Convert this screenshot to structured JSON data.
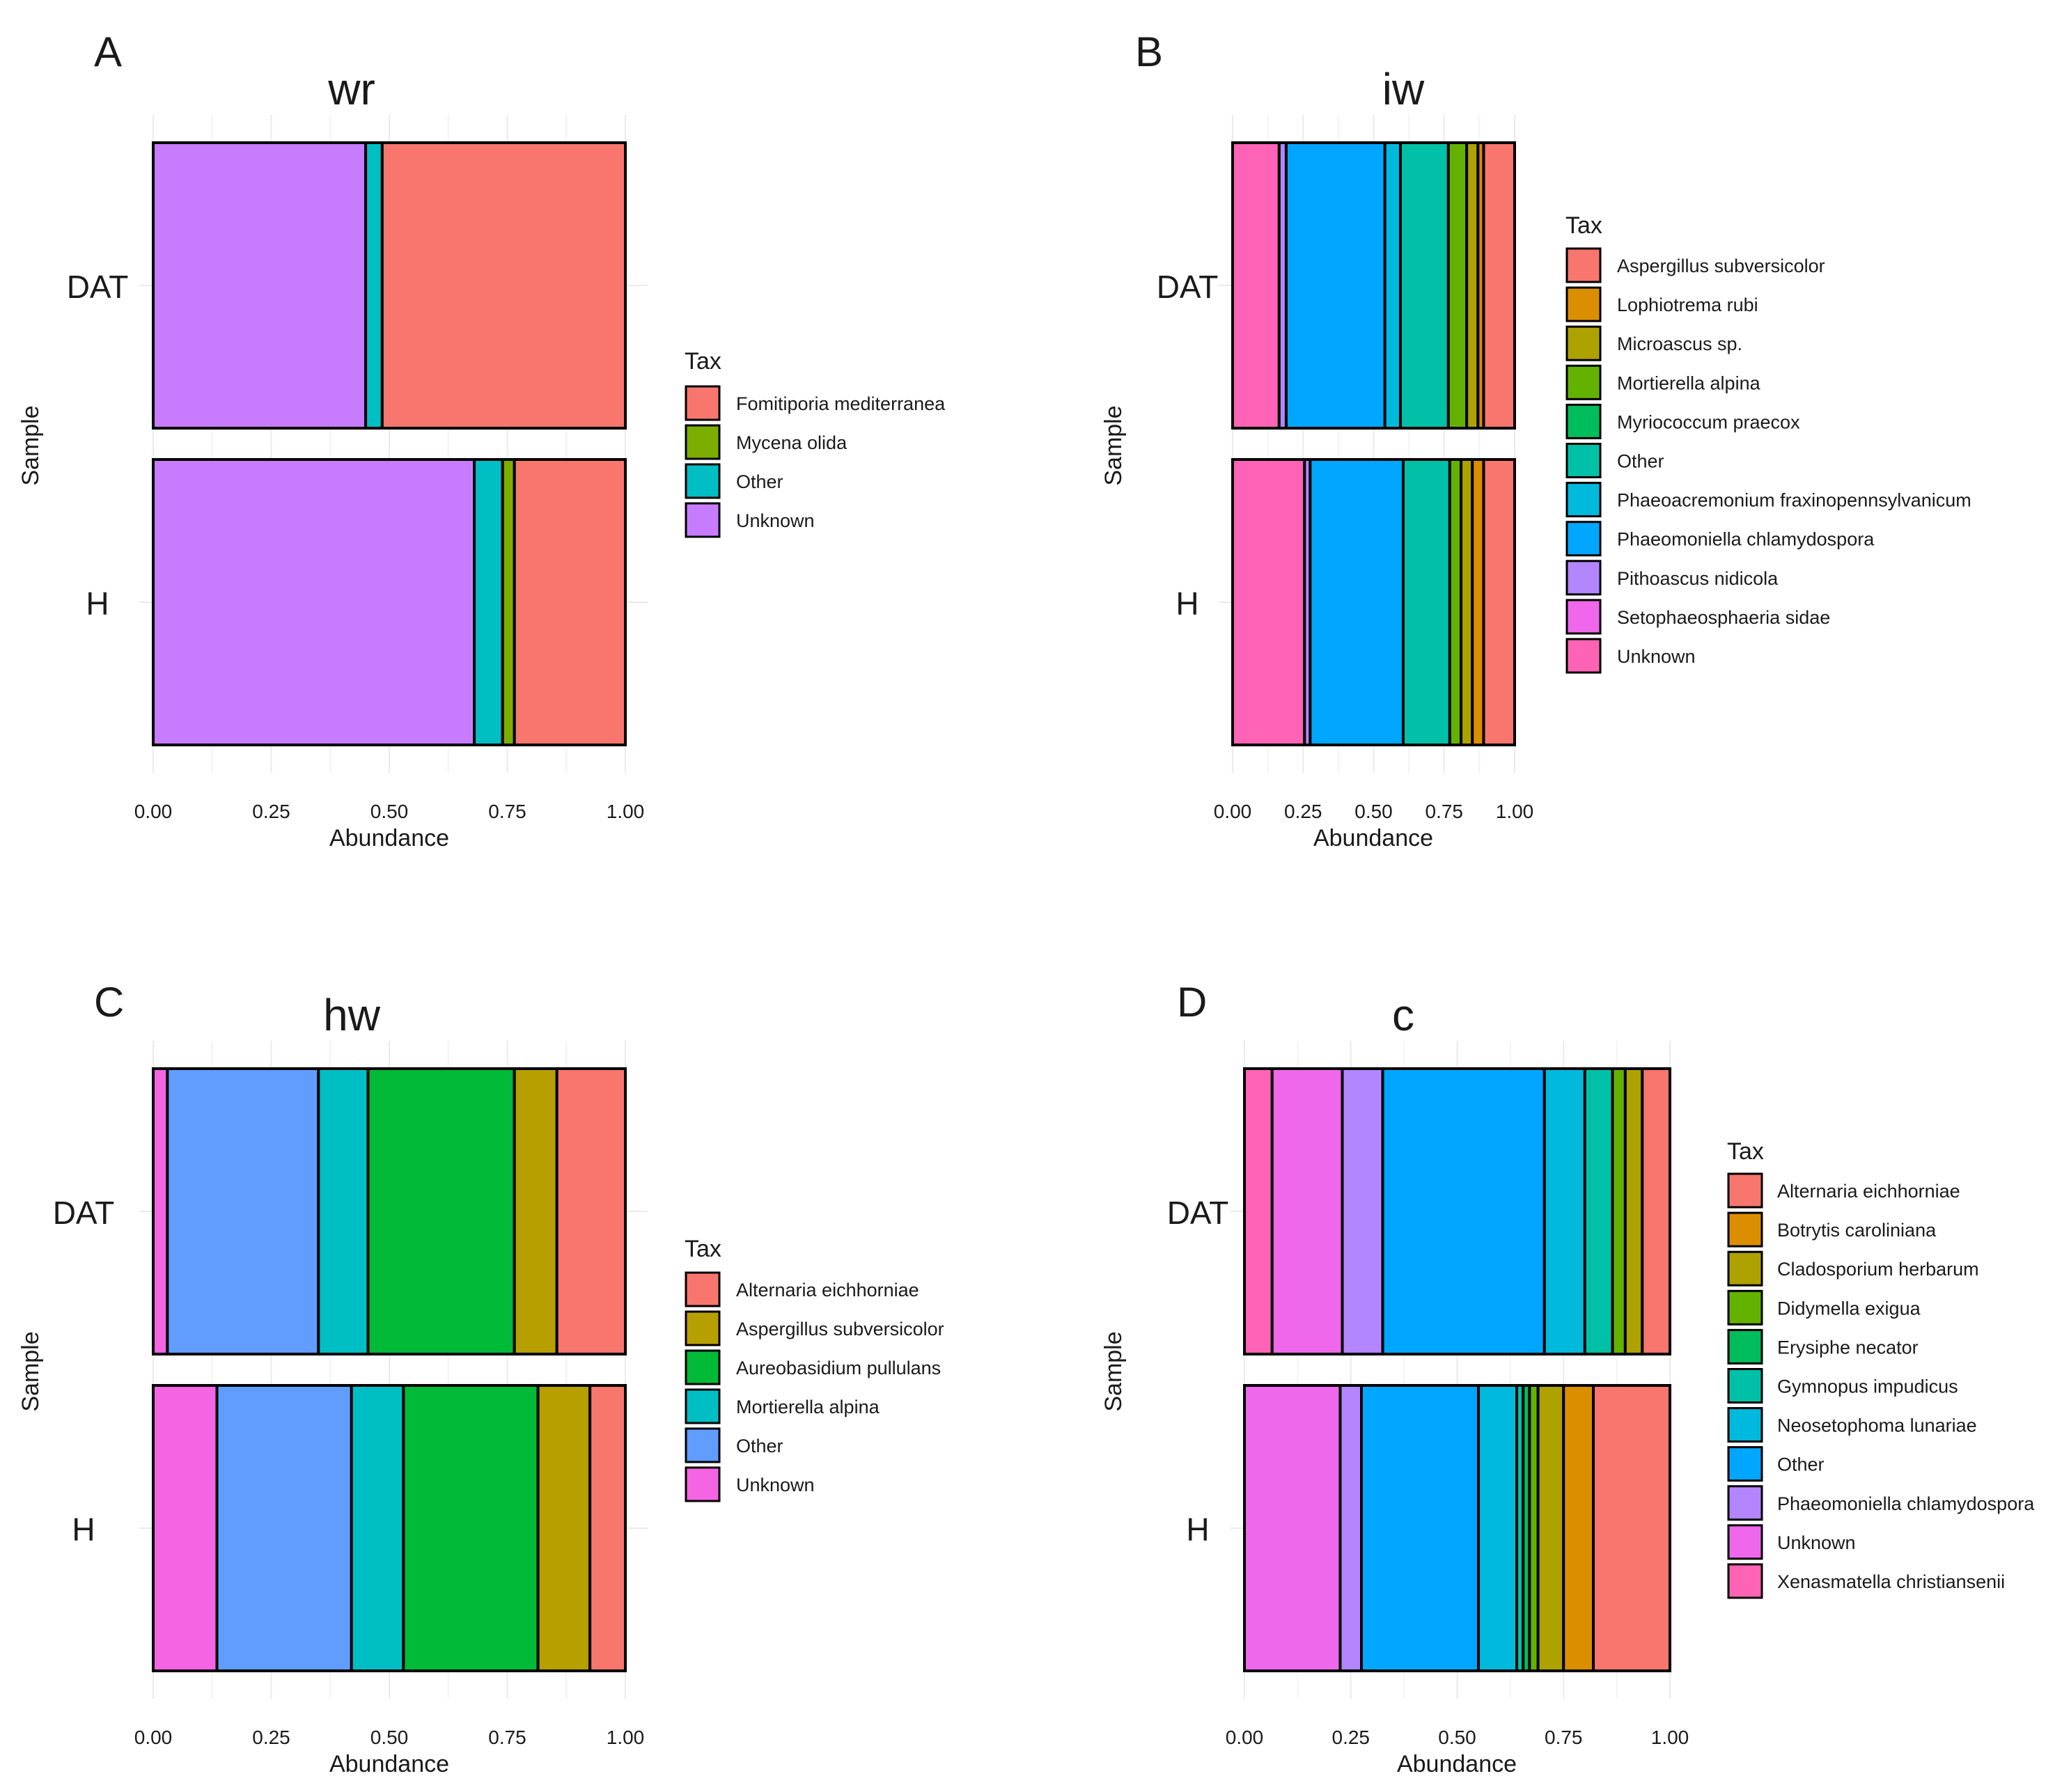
{
  "figure": {
    "panels": [
      {
        "letter": "A",
        "title": "wr"
      },
      {
        "letter": "B",
        "title": "iw"
      },
      {
        "letter": "C",
        "title": "hw"
      },
      {
        "letter": "D",
        "title": "c"
      }
    ]
  },
  "chart_data": [
    {
      "type": "bar",
      "orientation": "horizontal",
      "stacked": true,
      "panel": "A",
      "title": "wr",
      "xlabel": "Abundance",
      "ylabel": "Sample",
      "xlim": [
        0,
        1
      ],
      "xticks": [
        "0.00",
        "0.25",
        "0.50",
        "0.75",
        "1.00"
      ],
      "categories": [
        "DAT",
        "H"
      ],
      "legend_title": "Tax",
      "legend": [
        "Fomitiporia mediterranea",
        "Mycena olida",
        "Other",
        "Unknown"
      ],
      "colors": [
        "#F8766D",
        "#7CAE00",
        "#00BFC4",
        "#C77CFF"
      ],
      "series": [
        {
          "name": "Unknown",
          "values": [
            0.45,
            0.68
          ]
        },
        {
          "name": "Other",
          "values": [
            0.035,
            0.06
          ]
        },
        {
          "name": "Mycena olida",
          "values": [
            0.0,
            0.025
          ]
        },
        {
          "name": "Fomitiporia mediterranea",
          "values": [
            0.515,
            0.235
          ]
        }
      ]
    },
    {
      "type": "bar",
      "orientation": "horizontal",
      "stacked": true,
      "panel": "B",
      "title": "iw",
      "xlabel": "Abundance",
      "ylabel": "Sample",
      "xlim": [
        0,
        1
      ],
      "xticks": [
        "0.00",
        "0.25",
        "0.50",
        "0.75",
        "1.00"
      ],
      "categories": [
        "DAT",
        "H"
      ],
      "legend_title": "Tax",
      "legend": [
        "Aspergillus subversicolor",
        "Lophiotrema rubi",
        "Microascus sp.",
        "Mortierella alpina",
        "Myriococcum praecox",
        "Other",
        "Phaeoacremonium fraxinopennsylvanicum",
        "Phaeomoniella chlamydospora",
        "Pithoascus nidicola",
        "Setophaeosphaeria sidae",
        "Unknown"
      ],
      "colors": [
        "#F8766D",
        "#DB8E00",
        "#AEA200",
        "#64B200",
        "#00BD5C",
        "#00C1A7",
        "#00BADE",
        "#00A6FF",
        "#B385FF",
        "#EF67EB",
        "#FF63B6"
      ],
      "series": [
        {
          "name": "Unknown",
          "values": [
            0.165,
            0.255
          ]
        },
        {
          "name": "Setophaeosphaeria sidae",
          "values": [
            0.0,
            0.0
          ]
        },
        {
          "name": "Pithoascus nidicola",
          "values": [
            0.025,
            0.02
          ]
        },
        {
          "name": "Phaeomoniella chlamydospora",
          "values": [
            0.35,
            0.33
          ]
        },
        {
          "name": "Phaeoacremonium fraxinopennsylvanicum",
          "values": [
            0.055,
            0.0
          ]
        },
        {
          "name": "Other",
          "values": [
            0.17,
            0.165
          ]
        },
        {
          "name": "Myriococcum praecox",
          "values": [
            0.0,
            0.0
          ]
        },
        {
          "name": "Mortierella alpina",
          "values": [
            0.065,
            0.04
          ]
        },
        {
          "name": "Microascus sp.",
          "values": [
            0.04,
            0.04
          ]
        },
        {
          "name": "Lophiotrema rubi",
          "values": [
            0.02,
            0.04
          ]
        },
        {
          "name": "Aspergillus subversicolor",
          "values": [
            0.11,
            0.11
          ]
        }
      ]
    },
    {
      "type": "bar",
      "orientation": "horizontal",
      "stacked": true,
      "panel": "C",
      "title": "hw",
      "xlabel": "Abundance",
      "ylabel": "Sample",
      "xlim": [
        0,
        1
      ],
      "xticks": [
        "0.00",
        "0.25",
        "0.50",
        "0.75",
        "1.00"
      ],
      "categories": [
        "DAT",
        "H"
      ],
      "legend_title": "Tax",
      "legend": [
        "Alternaria eichhorniae",
        "Aspergillus subversicolor",
        "Aureobasidium pullulans",
        "Mortierella alpina",
        "Other",
        "Unknown"
      ],
      "colors": [
        "#F8766D",
        "#B79F00",
        "#00BA38",
        "#00BFC4",
        "#619CFF",
        "#F564E3"
      ],
      "series": [
        {
          "name": "Unknown",
          "values": [
            0.03,
            0.135
          ]
        },
        {
          "name": "Other",
          "values": [
            0.32,
            0.285
          ]
        },
        {
          "name": "Mortierella alpina",
          "values": [
            0.105,
            0.11
          ]
        },
        {
          "name": "Aureobasidium pullulans",
          "values": [
            0.31,
            0.285
          ]
        },
        {
          "name": "Aspergillus subversicolor",
          "values": [
            0.09,
            0.11
          ]
        },
        {
          "name": "Alternaria eichhorniae",
          "values": [
            0.145,
            0.075
          ]
        }
      ]
    },
    {
      "type": "bar",
      "orientation": "horizontal",
      "stacked": true,
      "panel": "D",
      "title": "c",
      "xlabel": "Abundance",
      "ylabel": "Sample",
      "xlim": [
        0,
        1
      ],
      "xticks": [
        "0.00",
        "0.25",
        "0.50",
        "0.75",
        "1.00"
      ],
      "categories": [
        "DAT",
        "H"
      ],
      "legend_title": "Tax",
      "legend": [
        "Alternaria eichhorniae",
        "Botrytis caroliniana",
        "Cladosporium herbarum",
        "Didymella exigua",
        "Erysiphe necator",
        "Gymnopus impudicus",
        "Neosetophoma lunariae",
        "Other",
        "Phaeomoniella chlamydospora",
        "Unknown",
        "Xenasmatella christiansenii"
      ],
      "colors": [
        "#F8766D",
        "#DB8E00",
        "#AEA200",
        "#64B200",
        "#00BD5C",
        "#00C1A7",
        "#00BADE",
        "#00A6FF",
        "#B385FF",
        "#EF67EB",
        "#FF63B6"
      ],
      "series": [
        {
          "name": "Xenasmatella christiansenii",
          "values": [
            0.065,
            0.0
          ]
        },
        {
          "name": "Unknown",
          "values": [
            0.165,
            0.225
          ]
        },
        {
          "name": "Phaeomoniella chlamydospora",
          "values": [
            0.095,
            0.05
          ]
        },
        {
          "name": "Other",
          "values": [
            0.38,
            0.275
          ]
        },
        {
          "name": "Neosetophoma lunariae",
          "values": [
            0.095,
            0.09
          ]
        },
        {
          "name": "Gymnopus impudicus",
          "values": [
            0.065,
            0.015
          ]
        },
        {
          "name": "Erysiphe necator",
          "values": [
            0.0,
            0.015
          ]
        },
        {
          "name": "Didymella exigua",
          "values": [
            0.03,
            0.02
          ]
        },
        {
          "name": "Cladosporium herbarum",
          "values": [
            0.04,
            0.06
          ]
        },
        {
          "name": "Botrytis caroliniana",
          "values": [
            0.0,
            0.07
          ]
        },
        {
          "name": "Alternaria eichhorniae",
          "values": [
            0.065,
            0.18
          ]
        }
      ]
    }
  ]
}
